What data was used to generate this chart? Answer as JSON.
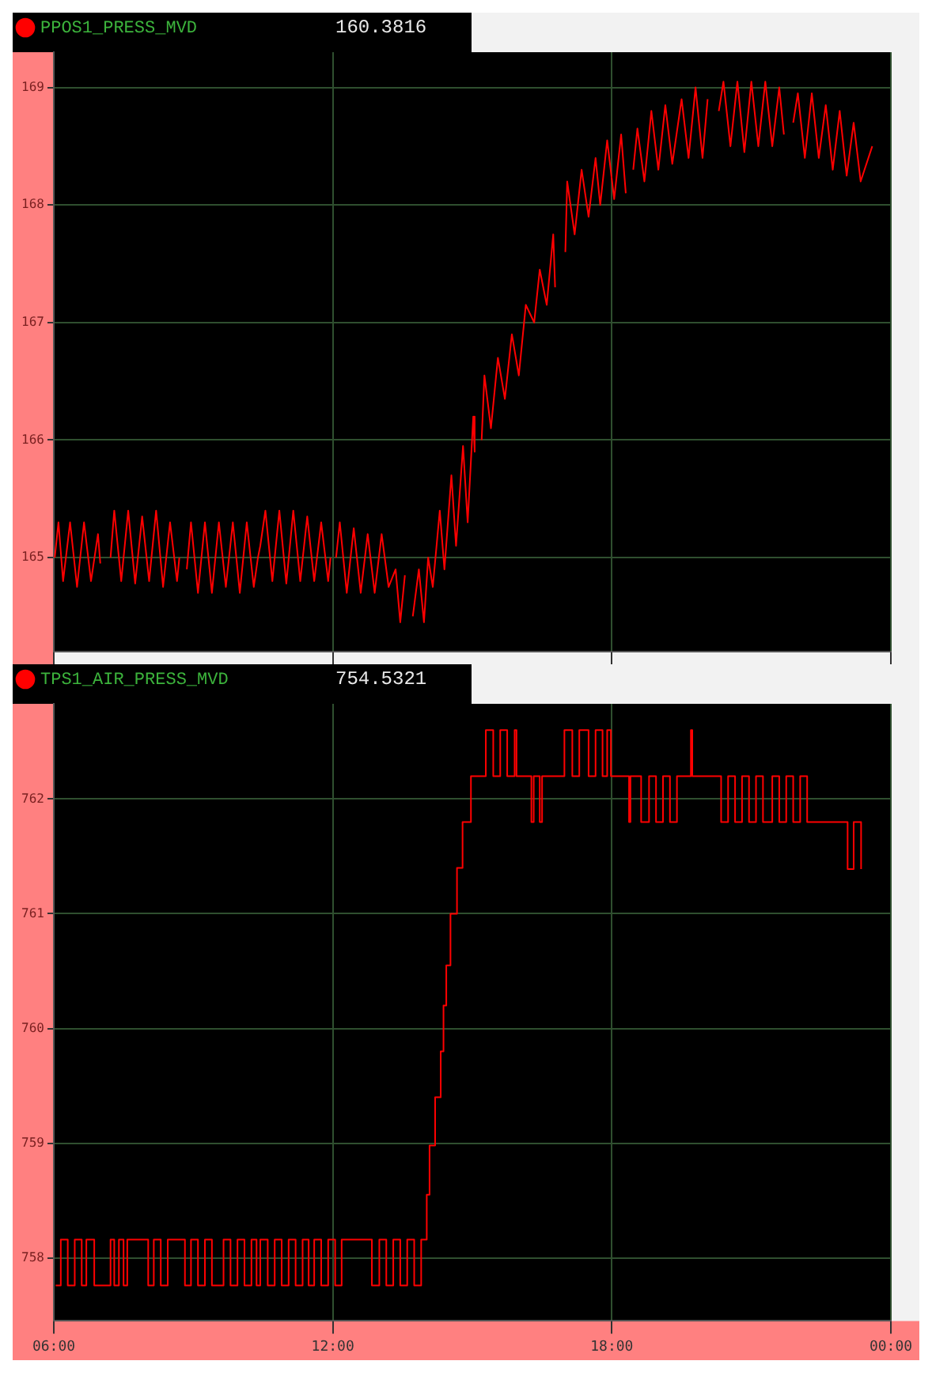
{
  "chart_data": [
    {
      "type": "line",
      "legend": "top left",
      "annotations": [
        "160.3816"
      ],
      "grid": true,
      "tick_labels": "y",
      "xlim": [
        6,
        24
      ],
      "xticks": [
        {
          "value": 6,
          "label": null
        },
        {
          "value": 12,
          "label": null
        },
        {
          "value": 18,
          "label": null
        },
        {
          "value": 24,
          "label": null
        }
      ],
      "ylim": [
        164.2,
        169.3
      ],
      "yticks": [
        165,
        166,
        167,
        168,
        169
      ],
      "x": [
        6.02,
        6.1,
        6.2,
        6.35,
        6.5,
        6.65,
        6.8,
        6.95,
        7.0,
        7.1,
        7.22,
        7.3,
        7.45,
        7.6,
        7.75,
        7.9,
        8.05,
        8.2,
        8.35,
        8.5,
        8.65,
        8.7,
        8.78,
        8.86,
        8.95,
        9.1,
        9.25,
        9.4,
        9.55,
        9.7,
        9.85,
        10.0,
        10.15,
        10.3,
        10.39,
        10.44,
        10.55,
        10.7,
        10.85,
        11.0,
        11.15,
        11.3,
        11.45,
        11.6,
        11.75,
        11.9,
        11.95,
        12.0,
        12.07,
        12.15,
        12.3,
        12.45,
        12.6,
        12.75,
        12.9,
        13.05,
        13.2,
        13.35,
        13.45,
        13.55,
        13.65,
        13.72,
        13.85,
        13.96,
        14.05,
        14.15,
        14.3,
        14.4,
        14.55,
        14.65,
        14.8,
        14.9,
        15.02,
        15.05,
        15.12,
        15.2,
        15.26,
        15.4,
        15.55,
        15.7,
        15.85,
        16.0,
        16.15,
        16.33,
        16.45,
        16.6,
        16.74,
        16.78,
        16.9,
        17.0,
        17.04,
        17.2,
        17.35,
        17.5,
        17.65,
        17.75,
        17.9,
        18.05,
        18.2,
        18.3,
        18.38,
        18.46,
        18.55,
        18.7,
        18.85,
        19.0,
        19.15,
        19.3,
        19.5,
        19.65,
        19.8,
        19.95,
        20.06,
        20.18,
        20.3,
        20.4,
        20.55,
        20.7,
        20.85,
        21.0,
        21.15,
        21.3,
        21.45,
        21.6,
        21.7,
        21.8,
        21.9,
        22.0,
        22.15,
        22.3,
        22.45,
        22.6,
        22.75,
        22.9,
        23.05,
        23.2,
        23.35,
        23.6
      ],
      "series": [
        {
          "name": "PPOS1_PRESS_MVD",
          "color": "#ff0000",
          "values": [
            165.0,
            165.3,
            164.8,
            165.3,
            164.75,
            165.3,
            164.8,
            165.2,
            164.95,
            null,
            165.0,
            165.4,
            164.8,
            165.4,
            164.78,
            165.35,
            164.8,
            165.4,
            164.75,
            165.3,
            164.8,
            165.0,
            null,
            164.9,
            165.3,
            164.7,
            165.3,
            164.7,
            165.3,
            164.75,
            165.3,
            164.7,
            165.3,
            164.75,
            165.0,
            165.1,
            165.4,
            164.8,
            165.4,
            164.78,
            165.4,
            164.8,
            165.35,
            164.8,
            165.3,
            164.8,
            165.0,
            null,
            165.0,
            165.3,
            164.7,
            165.25,
            164.7,
            165.2,
            164.7,
            165.2,
            164.75,
            164.9,
            164.45,
            164.85,
            null,
            164.5,
            164.9,
            164.45,
            165.0,
            164.75,
            165.4,
            164.9,
            165.7,
            165.1,
            165.95,
            165.3,
            166.2,
            165.9,
            null,
            166.0,
            166.55,
            166.1,
            166.7,
            166.35,
            166.9,
            166.55,
            167.15,
            167.0,
            167.45,
            167.15,
            167.75,
            167.3,
            null,
            167.6,
            168.2,
            167.75,
            168.3,
            167.9,
            168.4,
            168.0,
            168.55,
            168.05,
            168.6,
            168.1,
            null,
            168.3,
            168.65,
            168.2,
            168.8,
            168.3,
            168.85,
            168.35,
            168.9,
            168.4,
            169.0,
            168.4,
            168.9,
            null,
            168.8,
            169.05,
            168.5,
            169.05,
            168.45,
            169.05,
            168.5,
            169.05,
            168.5,
            169.0,
            168.6,
            null,
            168.7,
            168.95,
            168.4,
            168.95,
            168.4,
            168.85,
            168.3,
            168.8,
            168.25,
            168.7,
            168.2,
            168.5
          ]
        }
      ]
    },
    {
      "type": "step",
      "legend": "top left",
      "annotations": [
        "754.5321"
      ],
      "grid": true,
      "xlim": [
        6,
        24
      ],
      "xticks": [
        {
          "value": 6,
          "label": "06:00"
        },
        {
          "value": 12,
          "label": "12:00"
        },
        {
          "value": 18,
          "label": "18:00"
        },
        {
          "value": 24,
          "label": "00:00"
        }
      ],
      "ylim": [
        757.45,
        762.83
      ],
      "yticks": [
        758,
        759,
        760,
        761,
        762
      ],
      "x": [
        6.04,
        6.15,
        6.3,
        6.45,
        6.6,
        6.7,
        6.87,
        7.22,
        7.3,
        7.4,
        7.5,
        7.58,
        8.03,
        8.15,
        8.3,
        8.45,
        8.82,
        8.95,
        9.1,
        9.25,
        9.4,
        9.65,
        9.8,
        9.95,
        10.1,
        10.25,
        10.36,
        10.44,
        10.6,
        10.75,
        10.9,
        11.05,
        11.2,
        11.35,
        11.48,
        11.6,
        11.75,
        11.9,
        12.05,
        12.19,
        12.84,
        13.0,
        13.15,
        13.3,
        13.45,
        13.6,
        13.75,
        13.9,
        14.02,
        14.08,
        14.2,
        14.32,
        14.38,
        14.44,
        14.53,
        14.67,
        14.79,
        14.97,
        15.29,
        15.45,
        15.6,
        15.75,
        15.91,
        15.95,
        16.27,
        16.32,
        16.45,
        16.5,
        16.98,
        17.15,
        17.3,
        17.5,
        17.65,
        17.8,
        17.9,
        17.98,
        18.37,
        18.4,
        18.63,
        18.8,
        18.95,
        19.1,
        19.25,
        19.4,
        19.7,
        19.73,
        20.35,
        20.5,
        20.65,
        20.8,
        20.95,
        21.1,
        21.25,
        21.45,
        21.6,
        21.75,
        21.9,
        22.05,
        22.2,
        23.07,
        23.2,
        23.36
      ],
      "series": [
        {
          "name": "TPS1_AIR_PRESS_MVD",
          "color": "#ff0000",
          "values": [
            757.76,
            758.16,
            757.76,
            758.16,
            757.76,
            758.16,
            757.76,
            758.16,
            757.76,
            758.16,
            757.76,
            758.16,
            757.76,
            758.16,
            757.76,
            758.16,
            757.76,
            758.16,
            757.76,
            758.16,
            757.76,
            758.16,
            757.76,
            758.16,
            757.76,
            758.16,
            757.76,
            758.16,
            757.76,
            758.16,
            757.76,
            758.16,
            757.76,
            758.16,
            757.76,
            758.16,
            757.76,
            758.16,
            757.76,
            758.16,
            757.76,
            758.16,
            757.76,
            758.16,
            757.76,
            758.16,
            757.76,
            758.16,
            758.55,
            758.98,
            759.4,
            759.8,
            760.2,
            760.55,
            761.0,
            761.4,
            761.8,
            762.2,
            762.6,
            762.2,
            762.6,
            762.2,
            762.6,
            762.2,
            761.8,
            762.2,
            761.8,
            762.2,
            762.6,
            762.2,
            762.6,
            762.2,
            762.6,
            762.2,
            762.6,
            762.2,
            761.8,
            762.2,
            761.8,
            762.2,
            761.8,
            762.2,
            761.8,
            762.2,
            762.6,
            762.2,
            761.8,
            762.2,
            761.8,
            762.2,
            761.8,
            762.2,
            761.8,
            762.2,
            761.8,
            762.2,
            761.8,
            762.2,
            761.8,
            761.39,
            761.8,
            761.39
          ]
        }
      ]
    }
  ]
}
